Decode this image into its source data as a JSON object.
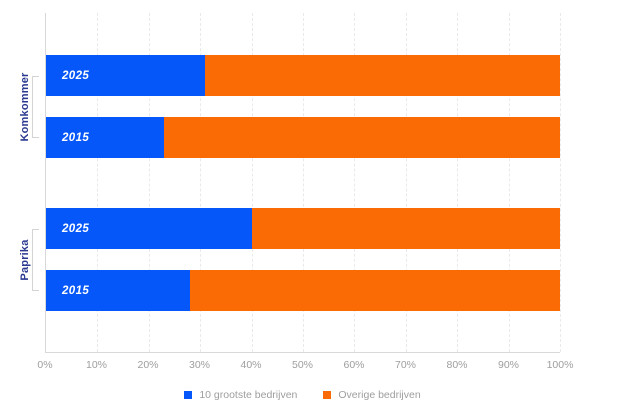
{
  "chart_data": {
    "type": "bar",
    "orientation": "horizontal",
    "stacked": true,
    "unit": "%",
    "title": "",
    "xlabel": "",
    "ylabel": "",
    "x_axis": {
      "min": 0,
      "max": 100,
      "tick_step": 10,
      "tick_labels": [
        "0%",
        "10%",
        "20%",
        "30%",
        "40%",
        "50%",
        "60%",
        "70%",
        "80%",
        "90%",
        "100%"
      ]
    },
    "grid": "vertical-dashed",
    "legend_position": "bottom-center",
    "series": [
      {
        "name": "10 grootste bedrijven",
        "color": "#0657f9"
      },
      {
        "name": "Overige bedrijven",
        "color": "#fa6a05"
      }
    ],
    "groups": [
      {
        "label": "Komkommer",
        "rows": [
          {
            "year": "2025",
            "values": [
              31,
              69
            ]
          },
          {
            "year": "2015",
            "values": [
              23,
              77
            ]
          }
        ]
      },
      {
        "label": "Paprika",
        "rows": [
          {
            "year": "2025",
            "values": [
              40,
              60
            ]
          },
          {
            "year": "2015",
            "values": [
              28,
              72
            ]
          }
        ]
      }
    ],
    "colors": {
      "category_label": "#2b3990",
      "axis_text": "#9e9e9e",
      "axis_line": "#d9d9d9",
      "gridline": "#e9e9e9",
      "bracket": "#d4d4d4",
      "bar_value_text": "#ffffff"
    }
  }
}
